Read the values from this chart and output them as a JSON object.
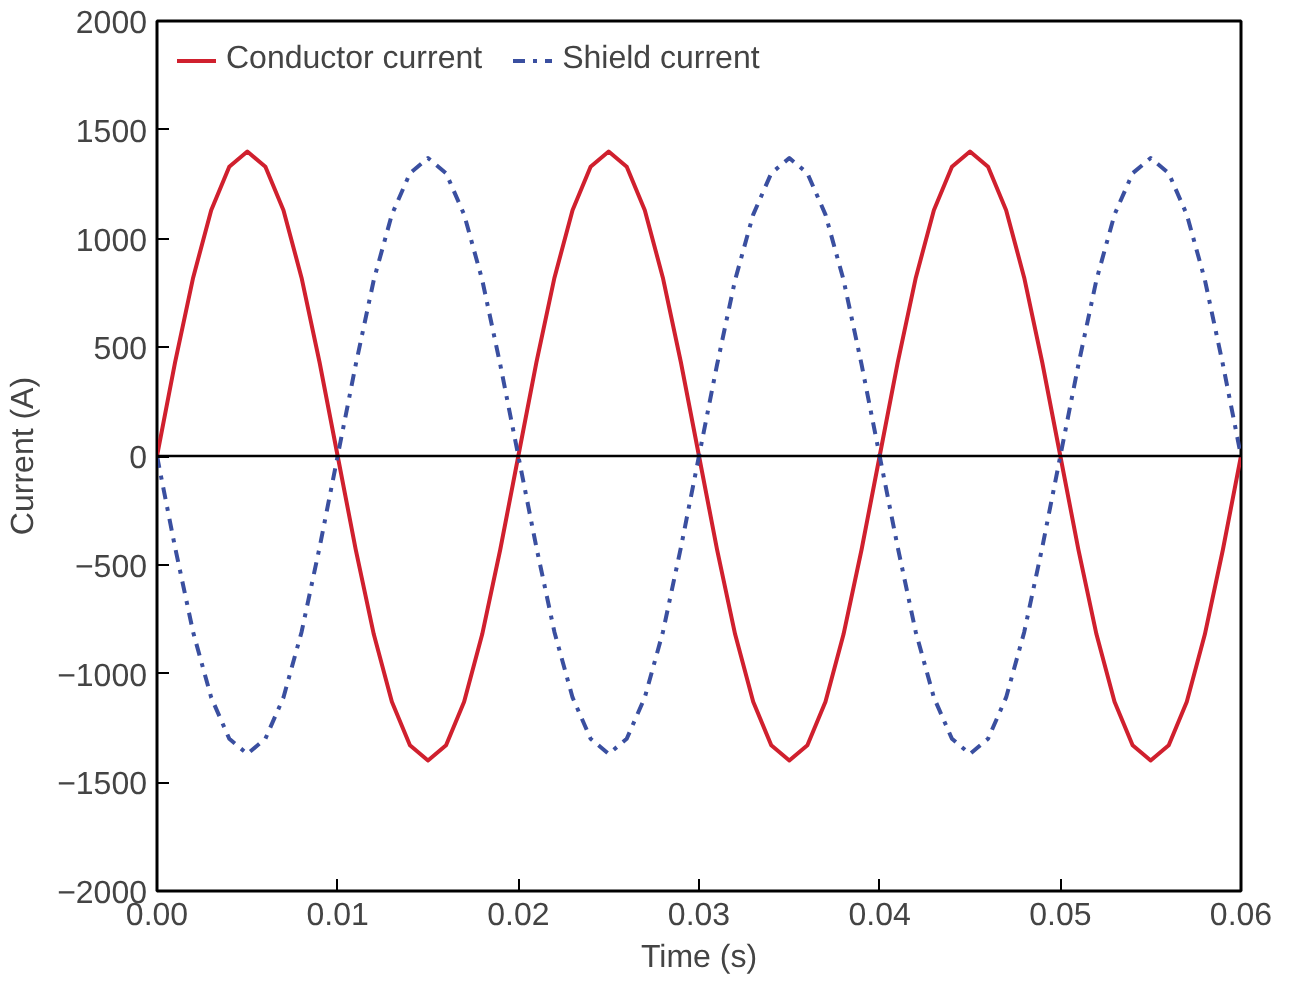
{
  "chart_data": {
    "type": "line",
    "xlabel": "Time (s)",
    "ylabel": "Current (A)",
    "x": [
      0,
      0.001,
      0.002,
      0.003,
      0.004,
      0.005,
      0.006,
      0.007,
      0.008,
      0.009,
      0.01,
      0.011,
      0.012,
      0.013,
      0.014,
      0.015,
      0.016,
      0.017,
      0.018,
      0.019,
      0.02,
      0.021,
      0.022,
      0.023,
      0.024,
      0.025,
      0.026,
      0.027,
      0.028,
      0.029,
      0.03,
      0.031,
      0.032,
      0.033,
      0.034,
      0.035,
      0.036,
      0.037,
      0.038,
      0.039,
      0.04,
      0.041,
      0.042,
      0.043,
      0.044,
      0.045,
      0.046,
      0.047,
      0.048,
      0.049,
      0.05,
      0.051,
      0.052,
      0.053,
      0.054,
      0.055,
      0.056,
      0.057,
      0.058,
      0.059,
      0.06
    ],
    "series": [
      {
        "name": "Conductor current",
        "color": "#d0202e",
        "line_style": "solid",
        "values": [
          0,
          430,
          820,
          1130,
          1330,
          1400,
          1330,
          1130,
          820,
          430,
          0,
          -430,
          -820,
          -1130,
          -1330,
          -1400,
          -1330,
          -1130,
          -820,
          -430,
          0,
          430,
          820,
          1130,
          1330,
          1400,
          1330,
          1130,
          820,
          430,
          0,
          -430,
          -820,
          -1130,
          -1330,
          -1400,
          -1330,
          -1130,
          -820,
          -430,
          0,
          430,
          820,
          1130,
          1330,
          1400,
          1330,
          1130,
          820,
          430,
          0,
          -430,
          -820,
          -1130,
          -1330,
          -1400,
          -1330,
          -1130,
          -820,
          -430,
          0
        ]
      },
      {
        "name": "Shield current",
        "color": "#3a4fa0",
        "line_style": "dashdot",
        "values": [
          0,
          -420,
          -810,
          -1110,
          -1300,
          -1370,
          -1300,
          -1110,
          -810,
          -420,
          0,
          420,
          810,
          1110,
          1300,
          1370,
          1300,
          1110,
          810,
          420,
          0,
          -420,
          -810,
          -1110,
          -1300,
          -1370,
          -1300,
          -1110,
          -810,
          -420,
          0,
          420,
          810,
          1110,
          1300,
          1370,
          1300,
          1110,
          810,
          420,
          0,
          -420,
          -810,
          -1110,
          -1300,
          -1370,
          -1300,
          -1110,
          -810,
          -420,
          0,
          420,
          810,
          1110,
          1300,
          1370,
          1300,
          1110,
          810,
          420,
          0
        ]
      }
    ],
    "xlim": [
      0,
      0.06
    ],
    "xticks": [
      {
        "value": 0,
        "label": "0.00"
      },
      0.01,
      0.02,
      0.03,
      0.04,
      0.05,
      0.06
    ],
    "ylim": [
      -2000,
      2000
    ],
    "yticks": [
      -2000,
      -1500,
      -1000,
      -500,
      0,
      500,
      1000,
      1500,
      2000
    ],
    "ref_lines": [
      {
        "axis": "y",
        "value": 0,
        "color": "#000000"
      }
    ],
    "grid": false,
    "legend": "top left"
  }
}
